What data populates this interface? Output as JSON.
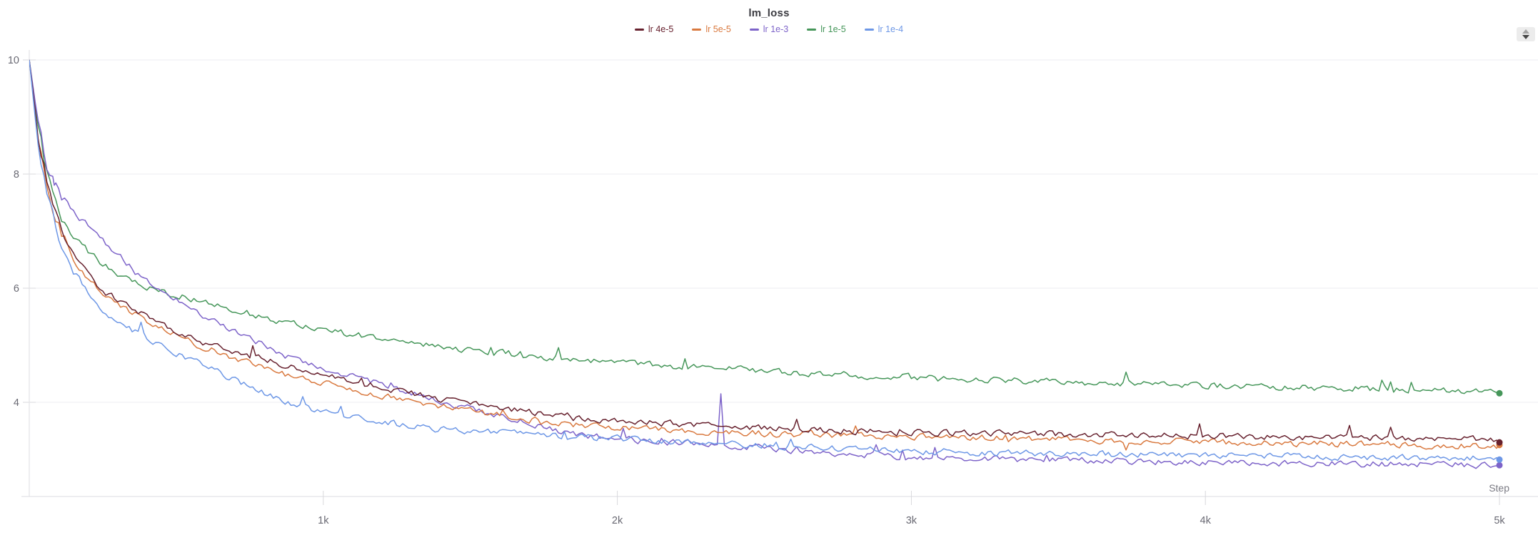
{
  "header": {
    "title": "lm_loss"
  },
  "controls": {
    "stepper_icon": "up-down-stepper"
  },
  "chart_data": {
    "type": "line",
    "title": "lm_loss",
    "xlabel": "Step",
    "ylabel": "",
    "xlim": [
      0,
      5000
    ],
    "ylim": [
      2.35,
      10
    ],
    "grid": "horizontal",
    "legend_position": "top-center",
    "y_ticks": [
      10,
      8,
      6,
      4
    ],
    "x_ticks": [
      {
        "step": 1000,
        "label": "1k"
      },
      {
        "step": 2000,
        "label": "2k"
      },
      {
        "step": 3000,
        "label": "3k"
      },
      {
        "step": 4000,
        "label": "4k"
      },
      {
        "step": 5000,
        "label": "5k"
      }
    ],
    "series": [
      {
        "name": "lr 4e-5",
        "color": "#67212e",
        "end_value": 3.35,
        "anchors": [
          [
            0,
            10
          ],
          [
            30,
            8.7
          ],
          [
            60,
            7.9
          ],
          [
            100,
            7.15
          ],
          [
            150,
            6.6
          ],
          [
            250,
            5.95
          ],
          [
            400,
            5.5
          ],
          [
            600,
            5.02
          ],
          [
            870,
            4.66
          ],
          [
            1100,
            4.38
          ],
          [
            1400,
            4.05
          ],
          [
            1840,
            3.72
          ],
          [
            2350,
            3.58
          ],
          [
            2800,
            3.5
          ],
          [
            3200,
            3.46
          ],
          [
            3700,
            3.43
          ],
          [
            4200,
            3.4
          ],
          [
            4600,
            3.37
          ],
          [
            5000,
            3.35
          ]
        ]
      },
      {
        "name": "lr 5e-5",
        "color": "#d9793f",
        "end_value": 3.23,
        "anchors": [
          [
            0,
            10
          ],
          [
            30,
            8.6
          ],
          [
            60,
            7.8
          ],
          [
            100,
            7.1
          ],
          [
            150,
            6.5
          ],
          [
            250,
            5.88
          ],
          [
            400,
            5.42
          ],
          [
            600,
            4.95
          ],
          [
            870,
            4.5
          ],
          [
            1100,
            4.22
          ],
          [
            1400,
            3.92
          ],
          [
            1840,
            3.6
          ],
          [
            2350,
            3.47
          ],
          [
            2800,
            3.42
          ],
          [
            3200,
            3.38
          ],
          [
            3700,
            3.33
          ],
          [
            4200,
            3.29
          ],
          [
            4600,
            3.26
          ],
          [
            5000,
            3.23
          ]
        ]
      },
      {
        "name": "lr 1e-3",
        "color": "#7d63c9",
        "end_value": 2.9,
        "anchors": [
          [
            0,
            10
          ],
          [
            30,
            8.9
          ],
          [
            60,
            8.2
          ],
          [
            85,
            7.9
          ],
          [
            110,
            7.55
          ],
          [
            140,
            7.4
          ],
          [
            200,
            7.1
          ],
          [
            300,
            6.6
          ],
          [
            410,
            6.08
          ],
          [
            600,
            5.5
          ],
          [
            870,
            4.82
          ],
          [
            1100,
            4.45
          ],
          [
            1400,
            4.02
          ],
          [
            1650,
            3.72
          ],
          [
            1840,
            3.45
          ],
          [
            2100,
            3.32
          ],
          [
            2340,
            3.26
          ],
          [
            2352,
            4.15
          ],
          [
            2364,
            3.25
          ],
          [
            2700,
            3.12
          ],
          [
            3000,
            3.04
          ],
          [
            3400,
            3.0
          ],
          [
            3800,
            2.96
          ],
          [
            4300,
            2.93
          ],
          [
            5000,
            2.9
          ]
        ]
      },
      {
        "name": "lr 1e-5",
        "color": "#459659",
        "end_value": 4.2,
        "anchors": [
          [
            0,
            10
          ],
          [
            30,
            8.8
          ],
          [
            60,
            8.0
          ],
          [
            100,
            7.35
          ],
          [
            150,
            6.9
          ],
          [
            250,
            6.4
          ],
          [
            400,
            6.0
          ],
          [
            600,
            5.76
          ],
          [
            870,
            5.4
          ],
          [
            1250,
            5.05
          ],
          [
            1550,
            4.89
          ],
          [
            1840,
            4.76
          ],
          [
            2200,
            4.63
          ],
          [
            2600,
            4.52
          ],
          [
            3000,
            4.44
          ],
          [
            3500,
            4.36
          ],
          [
            4000,
            4.3
          ],
          [
            4500,
            4.24
          ],
          [
            5000,
            4.2
          ]
        ]
      },
      {
        "name": "lr 1e-4",
        "color": "#6d97e6",
        "end_value": 3.02,
        "anchors": [
          [
            0,
            10
          ],
          [
            30,
            8.5
          ],
          [
            60,
            7.7
          ],
          [
            100,
            6.95
          ],
          [
            150,
            6.3
          ],
          [
            250,
            5.6
          ],
          [
            400,
            5.12
          ],
          [
            600,
            4.62
          ],
          [
            870,
            4.0
          ],
          [
            1100,
            3.72
          ],
          [
            1400,
            3.52
          ],
          [
            1840,
            3.4
          ],
          [
            2350,
            3.28
          ],
          [
            2800,
            3.18
          ],
          [
            3200,
            3.12
          ],
          [
            3700,
            3.09
          ],
          [
            4200,
            3.06
          ],
          [
            4600,
            3.04
          ],
          [
            5000,
            3.02
          ]
        ]
      }
    ]
  },
  "colors": {
    "grid_line": "#ededf0",
    "axis_line": "#e2e2e6",
    "tick_mark": "#d8d8dc",
    "tick_label": "#696973",
    "axis_label": "#7a7a83",
    "title_text": "#3b3b41"
  }
}
